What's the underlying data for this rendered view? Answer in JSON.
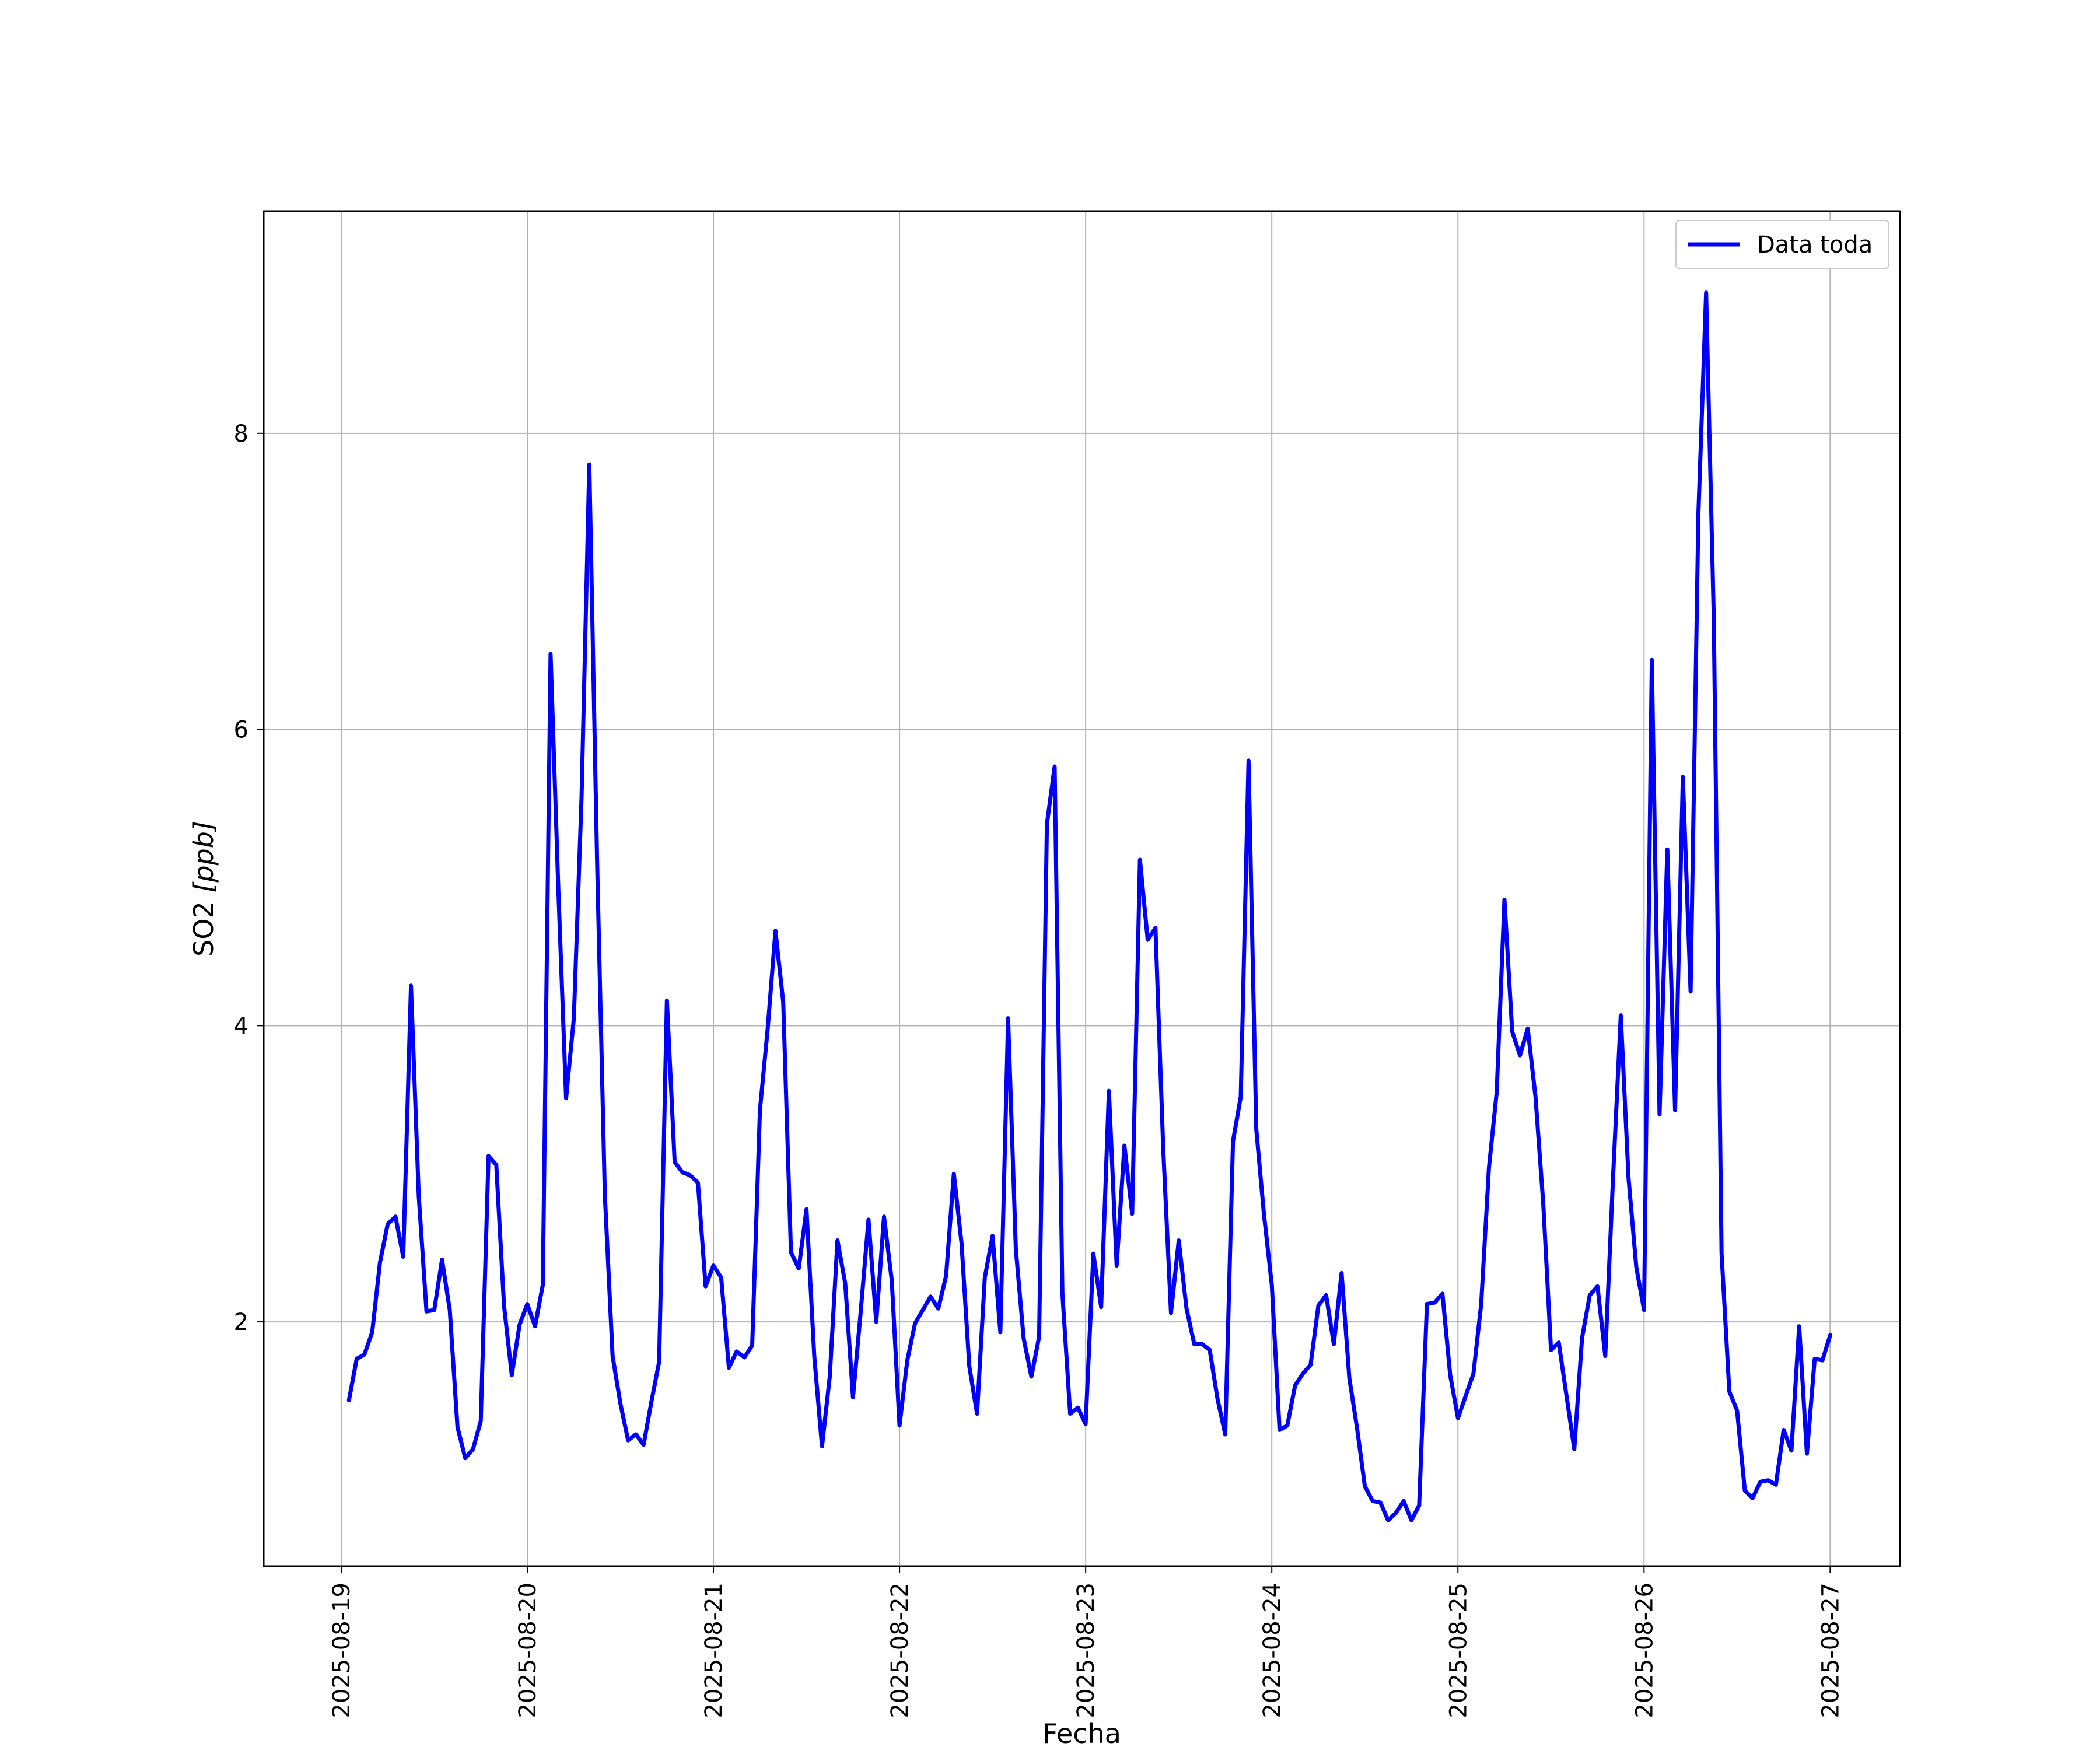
{
  "chart_data": {
    "type": "line",
    "title": "",
    "xlabel": "Fecha",
    "ylabel_main": "SO2 ",
    "ylabel_unit": "[ppb]",
    "x_ticks": [
      "2025-08-19",
      "2025-08-20",
      "2025-08-21",
      "2025-08-22",
      "2025-08-23",
      "2025-08-24",
      "2025-08-25",
      "2025-08-26",
      "2025-08-27"
    ],
    "y_ticks": [
      2,
      4,
      6,
      8
    ],
    "xlim": [
      "2025-08-18 14:00",
      "2025-08-27 09:00"
    ],
    "ylim": [
      0.35,
      9.5
    ],
    "grid": true,
    "legend": "top-right",
    "series": [
      {
        "name": "Data toda",
        "color": "#0000ff",
        "x": [
          "2025-08-19 01:00",
          "2025-08-19 02:00",
          "2025-08-19 03:00",
          "2025-08-19 04:00",
          "2025-08-19 05:00",
          "2025-08-19 06:00",
          "2025-08-19 07:00",
          "2025-08-19 08:00",
          "2025-08-19 09:00",
          "2025-08-19 10:00",
          "2025-08-19 11:00",
          "2025-08-19 12:00",
          "2025-08-19 13:00",
          "2025-08-19 14:00",
          "2025-08-19 15:00",
          "2025-08-19 16:00",
          "2025-08-19 17:00",
          "2025-08-19 18:00",
          "2025-08-19 19:00",
          "2025-08-19 20:00",
          "2025-08-19 21:00",
          "2025-08-19 22:00",
          "2025-08-19 23:00",
          "2025-08-20 00:00",
          "2025-08-20 01:00",
          "2025-08-20 02:00",
          "2025-08-20 03:00",
          "2025-08-20 04:00",
          "2025-08-20 05:00",
          "2025-08-20 06:00",
          "2025-08-20 07:00",
          "2025-08-20 08:00",
          "2025-08-20 09:00",
          "2025-08-20 10:00",
          "2025-08-20 11:00",
          "2025-08-20 12:00",
          "2025-08-20 13:00",
          "2025-08-20 14:00",
          "2025-08-20 15:00",
          "2025-08-20 16:00",
          "2025-08-20 17:00",
          "2025-08-20 18:00",
          "2025-08-20 19:00",
          "2025-08-20 20:00",
          "2025-08-20 21:00",
          "2025-08-20 22:00",
          "2025-08-20 23:00",
          "2025-08-21 00:00",
          "2025-08-21 01:00",
          "2025-08-21 02:00",
          "2025-08-21 03:00",
          "2025-08-21 04:00",
          "2025-08-21 05:00",
          "2025-08-21 06:00",
          "2025-08-21 07:00",
          "2025-08-21 08:00",
          "2025-08-21 09:00",
          "2025-08-21 10:00",
          "2025-08-21 11:00",
          "2025-08-21 12:00",
          "2025-08-21 13:00",
          "2025-08-21 14:00",
          "2025-08-21 15:00",
          "2025-08-21 16:00",
          "2025-08-21 17:00",
          "2025-08-21 18:00",
          "2025-08-21 19:00",
          "2025-08-21 20:00",
          "2025-08-21 21:00",
          "2025-08-21 22:00",
          "2025-08-21 23:00",
          "2025-08-22 00:00",
          "2025-08-22 01:00",
          "2025-08-22 02:00",
          "2025-08-22 03:00",
          "2025-08-22 04:00",
          "2025-08-22 05:00",
          "2025-08-22 06:00",
          "2025-08-22 07:00",
          "2025-08-22 08:00",
          "2025-08-22 09:00",
          "2025-08-22 10:00",
          "2025-08-22 11:00",
          "2025-08-22 12:00",
          "2025-08-22 13:00",
          "2025-08-22 14:00",
          "2025-08-22 15:00",
          "2025-08-22 16:00",
          "2025-08-22 17:00",
          "2025-08-22 18:00",
          "2025-08-22 19:00",
          "2025-08-22 20:00",
          "2025-08-22 21:00",
          "2025-08-22 22:00",
          "2025-08-22 23:00",
          "2025-08-23 00:00",
          "2025-08-23 01:00",
          "2025-08-23 02:00",
          "2025-08-23 03:00",
          "2025-08-23 04:00",
          "2025-08-23 05:00",
          "2025-08-23 06:00",
          "2025-08-23 07:00",
          "2025-08-23 08:00",
          "2025-08-23 09:00",
          "2025-08-23 10:00",
          "2025-08-23 11:00",
          "2025-08-23 12:00",
          "2025-08-23 13:00",
          "2025-08-23 14:00",
          "2025-08-23 15:00",
          "2025-08-23 16:00",
          "2025-08-23 17:00",
          "2025-08-23 18:00",
          "2025-08-23 19:00",
          "2025-08-23 20:00",
          "2025-08-23 21:00",
          "2025-08-23 22:00",
          "2025-08-23 23:00",
          "2025-08-24 00:00",
          "2025-08-24 01:00",
          "2025-08-24 02:00",
          "2025-08-24 03:00",
          "2025-08-24 04:00",
          "2025-08-24 05:00",
          "2025-08-24 06:00",
          "2025-08-24 07:00",
          "2025-08-24 08:00",
          "2025-08-24 09:00",
          "2025-08-24 10:00",
          "2025-08-24 11:00",
          "2025-08-24 12:00",
          "2025-08-24 13:00",
          "2025-08-24 14:00",
          "2025-08-24 15:00",
          "2025-08-24 16:00",
          "2025-08-24 17:00",
          "2025-08-24 18:00",
          "2025-08-24 19:00",
          "2025-08-24 20:00",
          "2025-08-24 21:00",
          "2025-08-24 22:00",
          "2025-08-24 23:00",
          "2025-08-25 00:00",
          "2025-08-25 01:00",
          "2025-08-25 02:00",
          "2025-08-25 03:00",
          "2025-08-25 04:00",
          "2025-08-25 05:00",
          "2025-08-25 06:00",
          "2025-08-25 07:00",
          "2025-08-25 08:00",
          "2025-08-25 09:00",
          "2025-08-25 10:00",
          "2025-08-25 11:00",
          "2025-08-25 12:00",
          "2025-08-25 13:00",
          "2025-08-25 14:00",
          "2025-08-25 15:00",
          "2025-08-25 16:00",
          "2025-08-25 17:00",
          "2025-08-25 18:00",
          "2025-08-25 19:00",
          "2025-08-25 20:00",
          "2025-08-25 21:00",
          "2025-08-25 22:00",
          "2025-08-25 23:00",
          "2025-08-26 00:00",
          "2025-08-26 01:00",
          "2025-08-26 02:00",
          "2025-08-26 03:00",
          "2025-08-26 04:00",
          "2025-08-26 05:00",
          "2025-08-26 06:00",
          "2025-08-26 07:00",
          "2025-08-26 08:00",
          "2025-08-26 09:00",
          "2025-08-26 10:00",
          "2025-08-26 11:00",
          "2025-08-26 12:00",
          "2025-08-26 13:00",
          "2025-08-26 14:00",
          "2025-08-26 15:00",
          "2025-08-26 16:00",
          "2025-08-26 17:00",
          "2025-08-26 18:00",
          "2025-08-26 19:00",
          "2025-08-26 20:00",
          "2025-08-26 21:00",
          "2025-08-26 22:00",
          "2025-08-26 23:00",
          "2025-08-27 00:00"
        ],
        "y": [
          1.47,
          1.75,
          1.78,
          1.93,
          2.4,
          2.66,
          2.71,
          2.44,
          4.27,
          2.85,
          2.07,
          2.08,
          2.42,
          2.08,
          1.29,
          1.08,
          1.14,
          1.33,
          3.12,
          3.06,
          2.11,
          1.64,
          1.98,
          2.12,
          1.97,
          2.25,
          6.51,
          4.92,
          3.51,
          4.05,
          5.54,
          7.79,
          5.12,
          2.86,
          1.77,
          1.45,
          1.2,
          1.24,
          1.17,
          1.46,
          1.73,
          4.17,
          3.08,
          3.01,
          2.99,
          2.94,
          2.24,
          2.38,
          2.3,
          1.69,
          1.8,
          1.76,
          1.84,
          3.43,
          3.98,
          4.64,
          4.16,
          2.47,
          2.36,
          2.76,
          1.77,
          1.16,
          1.63,
          2.55,
          2.26,
          1.49,
          2.07,
          2.69,
          2.0,
          2.71,
          2.28,
          1.3,
          1.74,
          1.99,
          2.08,
          2.17,
          2.09,
          2.31,
          3.0,
          2.53,
          1.7,
          1.38,
          2.3,
          2.58,
          1.93,
          4.05,
          2.49,
          1.89,
          1.63,
          1.9,
          5.36,
          5.75,
          2.19,
          1.38,
          1.42,
          1.31,
          2.46,
          2.1,
          3.56,
          2.38,
          3.19,
          2.73,
          5.12,
          4.58,
          4.66,
          3.17,
          2.06,
          2.55,
          2.09,
          1.85,
          1.85,
          1.81,
          1.48,
          1.24,
          3.22,
          3.52,
          5.79,
          3.3,
          2.72,
          2.25,
          1.27,
          1.3,
          1.57,
          1.65,
          1.71,
          2.11,
          2.18,
          1.85,
          2.33,
          1.62,
          1.28,
          0.89,
          0.79,
          0.78,
          0.66,
          0.71,
          0.79,
          0.66,
          0.76,
          2.12,
          2.13,
          2.19,
          1.64,
          1.35,
          1.5,
          1.65,
          2.12,
          3.04,
          3.55,
          4.85,
          3.96,
          3.8,
          3.98,
          3.52,
          2.8,
          1.81,
          1.86,
          1.5,
          1.14,
          1.89,
          2.18,
          2.24,
          1.77,
          2.97,
          4.07,
          2.97,
          2.37,
          2.08,
          6.47,
          3.4,
          5.19,
          3.43,
          5.68,
          4.23,
          7.45,
          8.95,
          6.74,
          2.46,
          1.53,
          1.4,
          0.86,
          0.81,
          0.92,
          0.93,
          0.9,
          1.27,
          1.13,
          1.97,
          1.11,
          1.75,
          1.74,
          1.91
        ]
      }
    ]
  }
}
